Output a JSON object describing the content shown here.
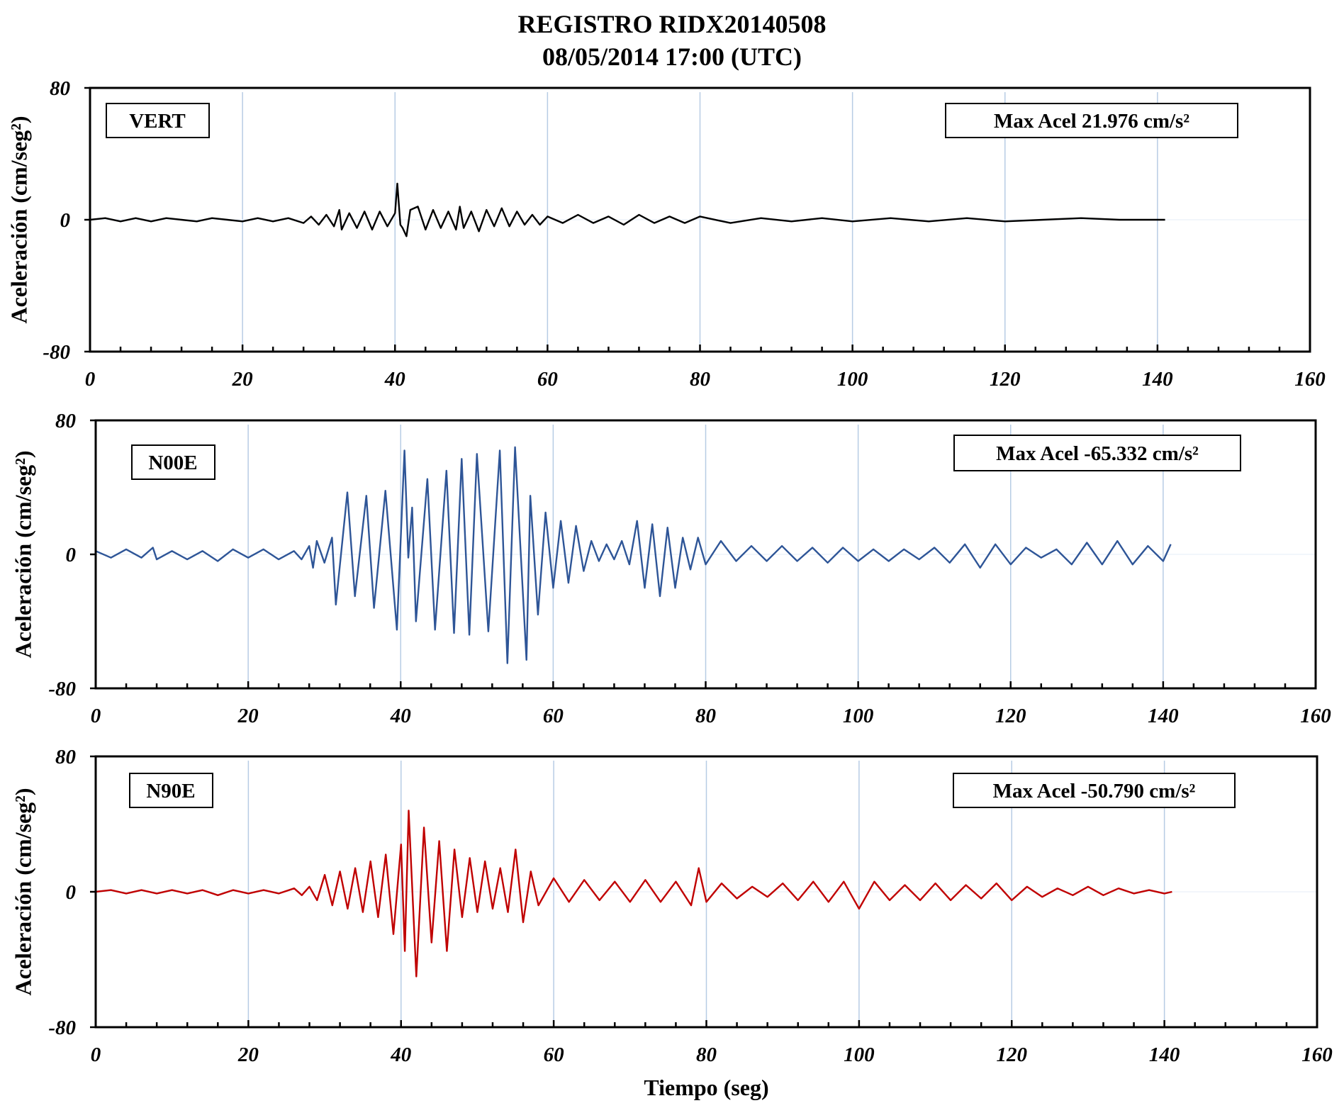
{
  "title": "REGISTRO RIDX20140508",
  "subtitle": "08/05/2014 17:00 (UTC)",
  "colors": {
    "VERT": "#000000",
    "N00E": "#2e5597",
    "N90E": "#c00000",
    "grid": "#b7cce4"
  },
  "chart_data": [
    {
      "type": "line",
      "component": "VERT",
      "annotation": "Max Acel 21.976 cm/s²",
      "ylabel": "Aceleración (cm/seg²)",
      "xlabel": "",
      "xlim": [
        0,
        160
      ],
      "ylim": [
        -80,
        80
      ],
      "xticks": [
        "0",
        "20",
        "40",
        "60",
        "80",
        "100",
        "120",
        "140",
        "160"
      ],
      "yticks": [
        "80",
        "0",
        "-80"
      ],
      "record_end": 141,
      "series": [
        {
          "color": "#000000",
          "points": [
            [
              0,
              0
            ],
            [
              2,
              1
            ],
            [
              4,
              -1
            ],
            [
              6,
              1
            ],
            [
              8,
              -1
            ],
            [
              10,
              1
            ],
            [
              12,
              0
            ],
            [
              14,
              -1
            ],
            [
              16,
              1
            ],
            [
              18,
              0
            ],
            [
              20,
              -1
            ],
            [
              22,
              1
            ],
            [
              24,
              -1
            ],
            [
              26,
              1
            ],
            [
              28,
              -2
            ],
            [
              29,
              2
            ],
            [
              30,
              -3
            ],
            [
              31,
              3
            ],
            [
              32,
              -4
            ],
            [
              32.7,
              6
            ],
            [
              33,
              -6
            ],
            [
              34,
              4
            ],
            [
              35,
              -5
            ],
            [
              36,
              5
            ],
            [
              37,
              -6
            ],
            [
              38,
              5
            ],
            [
              39,
              -4
            ],
            [
              40,
              4
            ],
            [
              40.3,
              22
            ],
            [
              40.7,
              -3
            ],
            [
              41,
              -5
            ],
            [
              41.5,
              -10
            ],
            [
              42,
              6
            ],
            [
              43,
              8
            ],
            [
              44,
              -6
            ],
            [
              45,
              6
            ],
            [
              46,
              -5
            ],
            [
              47,
              5
            ],
            [
              48,
              -6
            ],
            [
              48.5,
              8
            ],
            [
              49,
              -5
            ],
            [
              50,
              5
            ],
            [
              51,
              -7
            ],
            [
              52,
              6
            ],
            [
              53,
              -4
            ],
            [
              54,
              7
            ],
            [
              55,
              -4
            ],
            [
              56,
              5
            ],
            [
              57,
              -3
            ],
            [
              58,
              3
            ],
            [
              59,
              -3
            ],
            [
              60,
              2
            ],
            [
              62,
              -2
            ],
            [
              64,
              3
            ],
            [
              66,
              -2
            ],
            [
              68,
              2
            ],
            [
              70,
              -3
            ],
            [
              72,
              3
            ],
            [
              74,
              -2
            ],
            [
              76,
              2
            ],
            [
              78,
              -2
            ],
            [
              80,
              2
            ],
            [
              84,
              -2
            ],
            [
              88,
              1
            ],
            [
              92,
              -1
            ],
            [
              96,
              1
            ],
            [
              100,
              -1
            ],
            [
              105,
              1
            ],
            [
              110,
              -1
            ],
            [
              115,
              1
            ],
            [
              120,
              -1
            ],
            [
              125,
              0
            ],
            [
              130,
              1
            ],
            [
              135,
              0
            ],
            [
              141,
              0
            ]
          ]
        }
      ]
    },
    {
      "type": "line",
      "component": "N00E",
      "annotation": "Max  Acel -65.332 cm/s²",
      "ylabel": "Aceleración (cm/seg²)",
      "xlabel": "",
      "xlim": [
        0,
        160
      ],
      "ylim": [
        -80,
        80
      ],
      "xticks": [
        "0",
        "20",
        "40",
        "60",
        "80",
        "100",
        "120",
        "140",
        "160"
      ],
      "yticks": [
        "80",
        "0",
        "-80"
      ],
      "record_end": 141,
      "series": [
        {
          "color": "#2e5597",
          "points": [
            [
              0,
              2
            ],
            [
              2,
              -2
            ],
            [
              4,
              3
            ],
            [
              6,
              -2
            ],
            [
              7.5,
              4
            ],
            [
              8,
              -3
            ],
            [
              10,
              2
            ],
            [
              12,
              -3
            ],
            [
              14,
              2
            ],
            [
              16,
              -4
            ],
            [
              18,
              3
            ],
            [
              20,
              -2
            ],
            [
              22,
              3
            ],
            [
              24,
              -3
            ],
            [
              26,
              2
            ],
            [
              27,
              -3
            ],
            [
              28,
              5
            ],
            [
              28.5,
              -8
            ],
            [
              29,
              8
            ],
            [
              30,
              -5
            ],
            [
              31,
              10
            ],
            [
              31.5,
              -30
            ],
            [
              33,
              37
            ],
            [
              34,
              -25
            ],
            [
              35.5,
              35
            ],
            [
              36.5,
              -32
            ],
            [
              38,
              38
            ],
            [
              39.5,
              -45
            ],
            [
              40.5,
              62
            ],
            [
              41,
              -2
            ],
            [
              41.5,
              28
            ],
            [
              42,
              -40
            ],
            [
              43.5,
              45
            ],
            [
              44.5,
              -45
            ],
            [
              46,
              50
            ],
            [
              47,
              -47
            ],
            [
              48,
              57
            ],
            [
              49,
              -48
            ],
            [
              50,
              60
            ],
            [
              51.5,
              -46
            ],
            [
              53,
              62
            ],
            [
              54,
              -65
            ],
            [
              55,
              64
            ],
            [
              56.5,
              -63
            ],
            [
              57,
              35
            ],
            [
              58,
              -36
            ],
            [
              59,
              25
            ],
            [
              60,
              -20
            ],
            [
              61,
              20
            ],
            [
              62,
              -17
            ],
            [
              63,
              17
            ],
            [
              64,
              -10
            ],
            [
              65,
              8
            ],
            [
              66,
              -4
            ],
            [
              67,
              6
            ],
            [
              68,
              -3
            ],
            [
              69,
              8
            ],
            [
              70,
              -6
            ],
            [
              71,
              20
            ],
            [
              72,
              -20
            ],
            [
              73,
              18
            ],
            [
              74,
              -25
            ],
            [
              75,
              16
            ],
            [
              76,
              -20
            ],
            [
              77,
              10
            ],
            [
              78,
              -9
            ],
            [
              79,
              10
            ],
            [
              80,
              -6
            ],
            [
              82,
              8
            ],
            [
              84,
              -4
            ],
            [
              86,
              5
            ],
            [
              88,
              -4
            ],
            [
              90,
              5
            ],
            [
              92,
              -4
            ],
            [
              94,
              4
            ],
            [
              96,
              -5
            ],
            [
              98,
              4
            ],
            [
              100,
              -4
            ],
            [
              102,
              3
            ],
            [
              104,
              -4
            ],
            [
              106,
              3
            ],
            [
              108,
              -3
            ],
            [
              110,
              4
            ],
            [
              112,
              -5
            ],
            [
              114,
              6
            ],
            [
              116,
              -8
            ],
            [
              118,
              6
            ],
            [
              120,
              -6
            ],
            [
              122,
              4
            ],
            [
              124,
              -2
            ],
            [
              126,
              3
            ],
            [
              128,
              -6
            ],
            [
              130,
              7
            ],
            [
              132,
              -6
            ],
            [
              134,
              8
            ],
            [
              136,
              -6
            ],
            [
              138,
              5
            ],
            [
              140,
              -4
            ],
            [
              141,
              6
            ]
          ]
        }
      ]
    },
    {
      "type": "line",
      "component": "N90E",
      "annotation": "Max Acel -50.790 cm/s²",
      "ylabel": "Aceleración (cm/seg²)",
      "xlabel": "Tiempo (seg)",
      "xlim": [
        0,
        160
      ],
      "ylim": [
        -80,
        80
      ],
      "xticks": [
        "0",
        "20",
        "40",
        "60",
        "80",
        "100",
        "120",
        "140",
        "160"
      ],
      "yticks": [
        "80",
        "0",
        "-80"
      ],
      "record_end": 141,
      "series": [
        {
          "color": "#c00000",
          "points": [
            [
              0,
              0
            ],
            [
              2,
              1
            ],
            [
              4,
              -1
            ],
            [
              6,
              1
            ],
            [
              8,
              -1
            ],
            [
              10,
              1
            ],
            [
              12,
              -1
            ],
            [
              14,
              1
            ],
            [
              16,
              -2
            ],
            [
              18,
              1
            ],
            [
              20,
              -1
            ],
            [
              22,
              1
            ],
            [
              24,
              -1
            ],
            [
              26,
              2
            ],
            [
              27,
              -2
            ],
            [
              28,
              3
            ],
            [
              29,
              -5
            ],
            [
              30,
              10
            ],
            [
              31,
              -8
            ],
            [
              32,
              12
            ],
            [
              33,
              -10
            ],
            [
              34,
              14
            ],
            [
              35,
              -12
            ],
            [
              36,
              18
            ],
            [
              37,
              -15
            ],
            [
              38,
              22
            ],
            [
              39,
              -25
            ],
            [
              40,
              28
            ],
            [
              40.5,
              -35
            ],
            [
              41,
              48
            ],
            [
              42,
              -50
            ],
            [
              43,
              38
            ],
            [
              44,
              -30
            ],
            [
              45,
              30
            ],
            [
              46,
              -35
            ],
            [
              47,
              25
            ],
            [
              48,
              -15
            ],
            [
              49,
              20
            ],
            [
              50,
              -12
            ],
            [
              51,
              18
            ],
            [
              52,
              -10
            ],
            [
              53,
              14
            ],
            [
              54,
              -12
            ],
            [
              55,
              25
            ],
            [
              56,
              -18
            ],
            [
              57,
              12
            ],
            [
              58,
              -8
            ],
            [
              60,
              8
            ],
            [
              62,
              -6
            ],
            [
              64,
              7
            ],
            [
              66,
              -5
            ],
            [
              68,
              6
            ],
            [
              70,
              -6
            ],
            [
              72,
              7
            ],
            [
              74,
              -6
            ],
            [
              76,
              6
            ],
            [
              78,
              -8
            ],
            [
              79,
              14
            ],
            [
              80,
              -6
            ],
            [
              82,
              5
            ],
            [
              84,
              -4
            ],
            [
              86,
              3
            ],
            [
              88,
              -3
            ],
            [
              90,
              5
            ],
            [
              92,
              -5
            ],
            [
              94,
              6
            ],
            [
              96,
              -6
            ],
            [
              98,
              6
            ],
            [
              100,
              -10
            ],
            [
              102,
              6
            ],
            [
              104,
              -5
            ],
            [
              106,
              4
            ],
            [
              108,
              -5
            ],
            [
              110,
              5
            ],
            [
              112,
              -5
            ],
            [
              114,
              4
            ],
            [
              116,
              -4
            ],
            [
              118,
              5
            ],
            [
              120,
              -5
            ],
            [
              122,
              3
            ],
            [
              124,
              -3
            ],
            [
              126,
              2
            ],
            [
              128,
              -2
            ],
            [
              130,
              3
            ],
            [
              132,
              -2
            ],
            [
              134,
              2
            ],
            [
              136,
              -1
            ],
            [
              138,
              1
            ],
            [
              140,
              -1
            ],
            [
              141,
              0
            ]
          ]
        }
      ]
    }
  ]
}
